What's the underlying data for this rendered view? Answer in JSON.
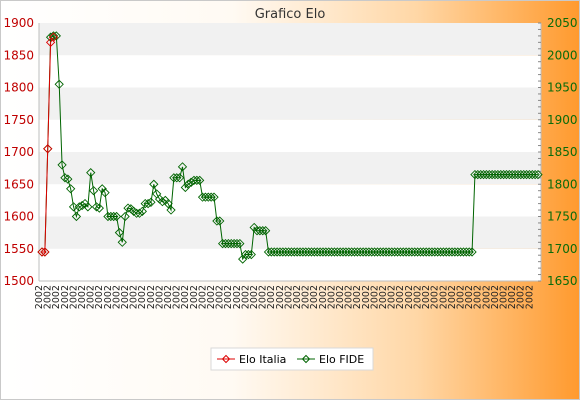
{
  "chart_data": {
    "type": "line",
    "title": "Grafico Elo",
    "xlabel": "",
    "ylabel": "",
    "y_left": {
      "min": 1500,
      "max": 1900,
      "ticks": [
        1500,
        1550,
        1600,
        1650,
        1700,
        1750,
        1800,
        1850,
        1900
      ]
    },
    "y_right": {
      "min": 1650,
      "max": 2050,
      "ticks": [
        1650,
        1700,
        1750,
        1800,
        1850,
        1900,
        1950,
        2000,
        2050
      ]
    },
    "x_tick_label": "2002",
    "grid": "horizontal bands",
    "legend_position": "bottom",
    "series": [
      {
        "name": "Elo Italia",
        "axis": "left",
        "color": "#dd0000",
        "values": [
          1545,
          1545,
          1705,
          1870,
          1878
        ]
      },
      {
        "name": "Elo FIDE",
        "axis": "right",
        "color": "#006400",
        "values": [
          1695,
          1695,
          1855,
          2028,
          2030,
          2030,
          1955,
          1830,
          1810,
          1808,
          1793,
          1765,
          1750,
          1765,
          1767,
          1770,
          1765,
          1818,
          1790,
          1765,
          1763,
          1793,
          1787,
          1750,
          1750,
          1750,
          1750,
          1725,
          1710,
          1750,
          1763,
          1762,
          1758,
          1755,
          1755,
          1758,
          1770,
          1770,
          1772,
          1800,
          1785,
          1777,
          1773,
          1775,
          1770,
          1760,
          1810,
          1810,
          1810,
          1827,
          1795,
          1800,
          1803,
          1806,
          1806,
          1806,
          1780,
          1780,
          1780,
          1780,
          1780,
          1743,
          1743,
          1708,
          1708,
          1708,
          1708,
          1708,
          1708,
          1708,
          1684,
          1691,
          1691,
          1691,
          1733,
          1728,
          1728,
          1728,
          1728,
          1695,
          1695,
          1695,
          1695,
          1695,
          1695,
          1695,
          1695,
          1695,
          1695,
          1695,
          1695,
          1695,
          1695,
          1695,
          1695,
          1695,
          1695,
          1695,
          1695,
          1695,
          1695,
          1695,
          1695,
          1695,
          1695,
          1695,
          1695,
          1695,
          1695,
          1695,
          1695,
          1695,
          1695,
          1695,
          1695,
          1695,
          1695,
          1695,
          1695,
          1695,
          1695,
          1695,
          1695,
          1695,
          1695,
          1695,
          1695,
          1695,
          1695,
          1695,
          1695,
          1695,
          1695,
          1695,
          1695,
          1695,
          1695,
          1695,
          1695,
          1695,
          1695,
          1695,
          1695,
          1695,
          1695,
          1695,
          1695,
          1695,
          1695,
          1695,
          1695,
          1815,
          1815,
          1815,
          1815,
          1815,
          1815,
          1815,
          1815,
          1815,
          1815,
          1815,
          1815,
          1815,
          1815,
          1815,
          1815,
          1815,
          1815,
          1815,
          1815,
          1815,
          1815,
          1815
        ]
      }
    ]
  }
}
